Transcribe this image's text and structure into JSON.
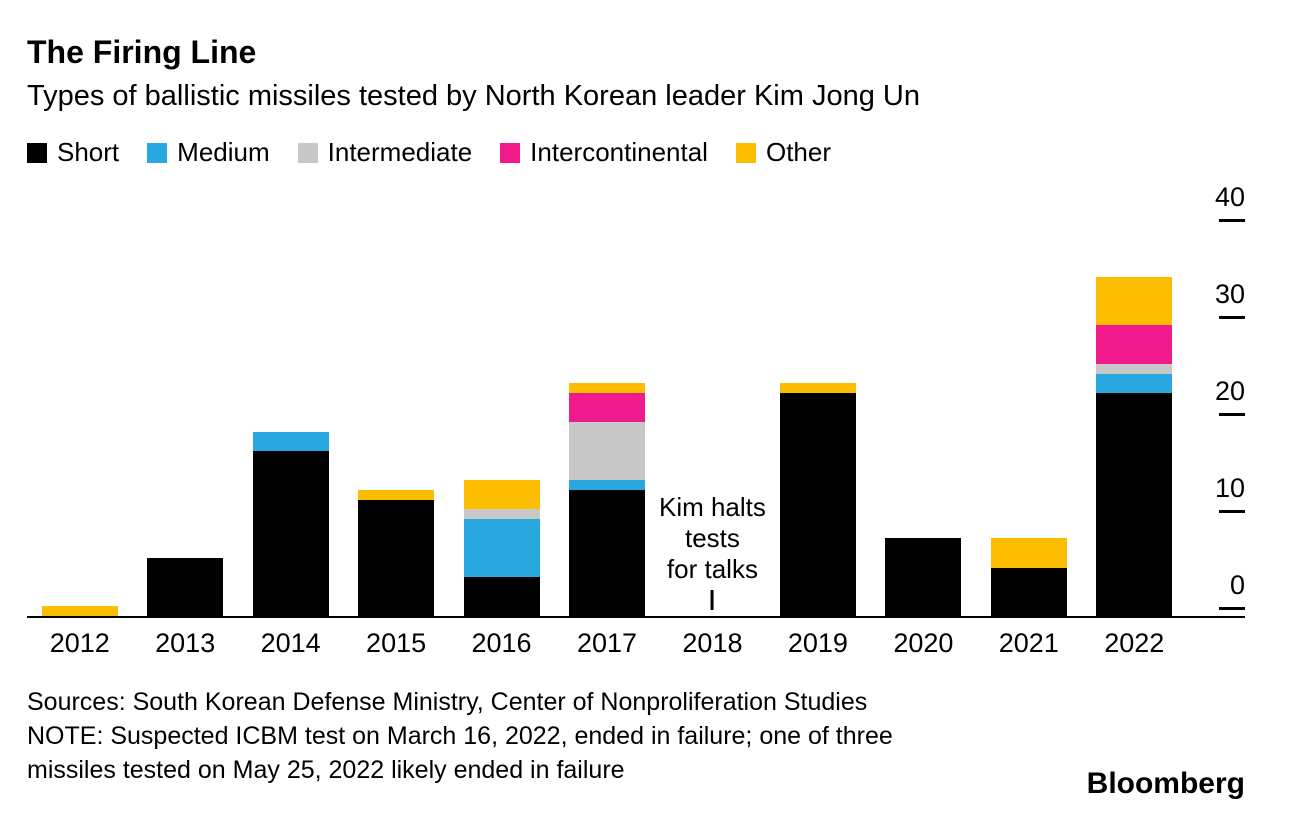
{
  "header": {
    "title": "The Firing Line",
    "subtitle": "Types of ballistic missiles tested by North Korean leader Kim Jong Un"
  },
  "legend": {
    "items": [
      {
        "label": "Short",
        "color": "#000000"
      },
      {
        "label": "Medium",
        "color": "#29A8E0"
      },
      {
        "label": "Intermediate",
        "color": "#C8C8C8"
      },
      {
        "label": "Intercontinental",
        "color": "#F01A8D"
      },
      {
        "label": "Other",
        "color": "#FCBD00"
      }
    ]
  },
  "chart_data": {
    "type": "bar",
    "stacked": true,
    "title": "The Firing Line",
    "subtitle": "Types of ballistic missiles tested by North Korean leader Kim Jong Un",
    "categories": [
      "2012",
      "2013",
      "2014",
      "2015",
      "2016",
      "2017",
      "2018",
      "2019",
      "2020",
      "2021",
      "2022"
    ],
    "series": [
      {
        "name": "Short",
        "color": "#000000",
        "values": [
          0,
          6,
          17,
          12,
          4,
          13,
          0,
          23,
          8,
          5,
          23
        ]
      },
      {
        "name": "Medium",
        "color": "#29A8E0",
        "values": [
          0,
          0,
          2,
          0,
          6,
          1,
          0,
          0,
          0,
          0,
          2
        ]
      },
      {
        "name": "Intermediate",
        "color": "#C8C8C8",
        "values": [
          0,
          0,
          0,
          0,
          1,
          6,
          0,
          0,
          0,
          0,
          1
        ]
      },
      {
        "name": "Intercontinental",
        "color": "#F01A8D",
        "values": [
          0,
          0,
          0,
          0,
          0,
          3,
          0,
          0,
          0,
          0,
          4
        ]
      },
      {
        "name": "Other",
        "color": "#FCBD00",
        "values": [
          1,
          0,
          0,
          1,
          3,
          1,
          0,
          1,
          0,
          3,
          5
        ]
      }
    ],
    "ylim": [
      0,
      40
    ],
    "yticks": [
      0,
      10,
      20,
      30,
      40
    ],
    "grid": false,
    "legend_position": "top",
    "annotation": {
      "category": "2018",
      "lines": [
        "Kim halts",
        "tests",
        "for talks"
      ]
    }
  },
  "footer": {
    "sources": "Sources: South Korean Defense Ministry, Center of Nonproliferation Studies",
    "note_line1": "NOTE: Suspected ICBM test on March 16, 2022, ended in failure; one of three",
    "note_line2": "missiles tested on May 25, 2022 likely ended in failure",
    "brand": "Bloomberg"
  }
}
